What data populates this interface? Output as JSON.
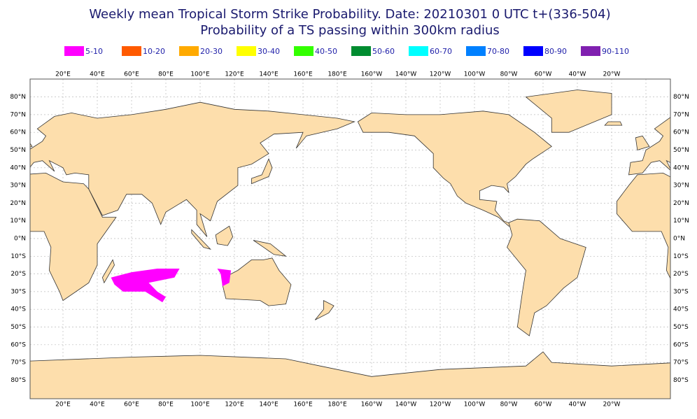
{
  "title": [
    "Weekly mean Tropical Storm Strike Probability. Date: 20210301  0 UTC    t+(336-504)",
    "Probability of a TS passing within  300km radius"
  ],
  "legend": [
    {
      "label": "5-10",
      "color": "#ff00ff"
    },
    {
      "label": "10-20",
      "color": "#ff5a00"
    },
    {
      "label": "20-30",
      "color": "#ffaa00"
    },
    {
      "label": "30-40",
      "color": "#ffff00"
    },
    {
      "label": "40-50",
      "color": "#33ff00"
    },
    {
      "label": "50-60",
      "color": "#008c30"
    },
    {
      "label": "60-70",
      "color": "#00ffff"
    },
    {
      "label": "70-80",
      "color": "#0080ff"
    },
    {
      "label": "80-90",
      "color": "#0000ff"
    },
    {
      "label": "90-110",
      "color": "#8020b0"
    }
  ],
  "longitude_labels": [
    "20°E",
    "40°E",
    "60°E",
    "80°E",
    "100°E",
    "120°E",
    "140°E",
    "160°E",
    "180°E",
    "160°W",
    "140°W",
    "120°W",
    "100°W",
    "80°W",
    "60°W",
    "40°W",
    "20°W"
  ],
  "latitude_labels": [
    "80°N",
    "70°N",
    "60°N",
    "50°N",
    "40°N",
    "30°N",
    "20°N",
    "10°N",
    "0°N",
    "10°S",
    "20°S",
    "30°S",
    "40°S",
    "50°S",
    "60°S",
    "70°S",
    "80°S"
  ]
}
